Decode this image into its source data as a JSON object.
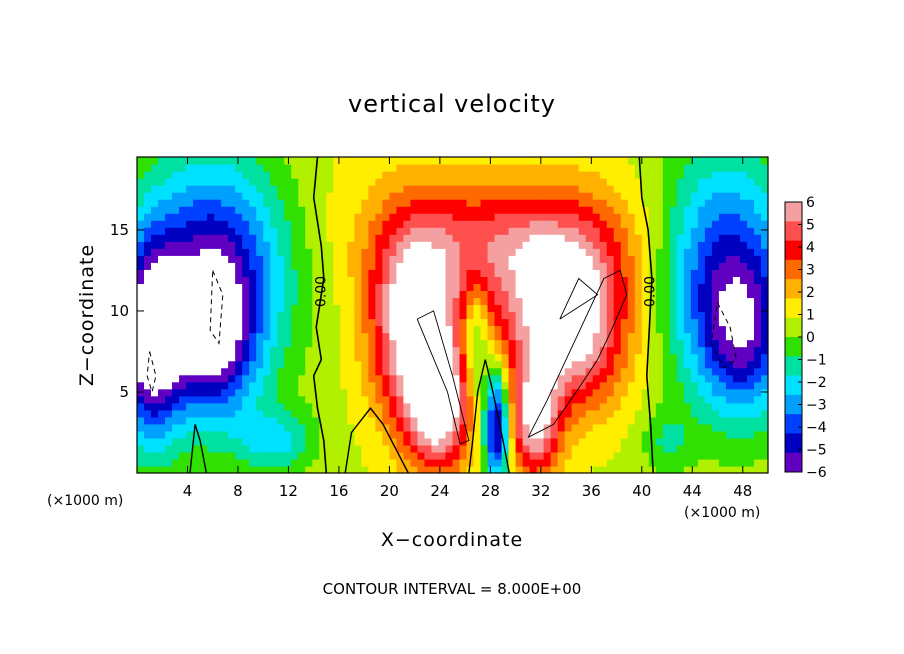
{
  "chart_data": {
    "type": "heatmap",
    "title": "vertical velocity",
    "xlabel": "X−coordinate",
    "ylabel": "Z−coordinate",
    "x_unit_left": "(×1000 m)",
    "x_unit_right": "(×1000 m)",
    "footer": "CONTOUR INTERVAL = 8.000E+00",
    "xlim": [
      0,
      50
    ],
    "ylim": [
      0,
      19.5
    ],
    "x_ticks": [
      "4",
      "8",
      "12",
      "16",
      "20",
      "24",
      "28",
      "32",
      "36",
      "40",
      "44",
      "48"
    ],
    "y_ticks": [
      "5",
      "10",
      "15"
    ],
    "colorbar": {
      "range": [
        -6,
        6
      ],
      "tick_labels": [
        "6",
        "5",
        "4",
        "3",
        "2",
        "1",
        "0",
        "−1",
        "−2",
        "−3",
        "−4",
        "−5",
        "−6"
      ],
      "colors": [
        "#f4a0a0",
        "#ff5050",
        "#ff0000",
        "#ff6a00",
        "#ffb000",
        "#ffee00",
        "#b0f000",
        "#30e000",
        "#00e0a0",
        "#00e0ff",
        "#00a0ff",
        "#0040ff",
        "#0000c0",
        "#6000c0"
      ],
      "overflow_color": "#ffffff"
    },
    "contour_labels": [
      "0.00",
      "0.00"
    ],
    "field_features": [
      {
        "kind": "updraft",
        "x": 23,
        "z": 8,
        "peak": ">6"
      },
      {
        "kind": "updraft",
        "x": 34,
        "z": 9,
        "peak": ">6"
      },
      {
        "kind": "downdraft",
        "x": 6,
        "z": 9,
        "peak": "<-6"
      },
      {
        "kind": "downdraft",
        "x": 1,
        "z": 8,
        "peak": "<-6"
      },
      {
        "kind": "downdraft",
        "x": 47,
        "z": 9,
        "peak": "<-6"
      }
    ]
  }
}
